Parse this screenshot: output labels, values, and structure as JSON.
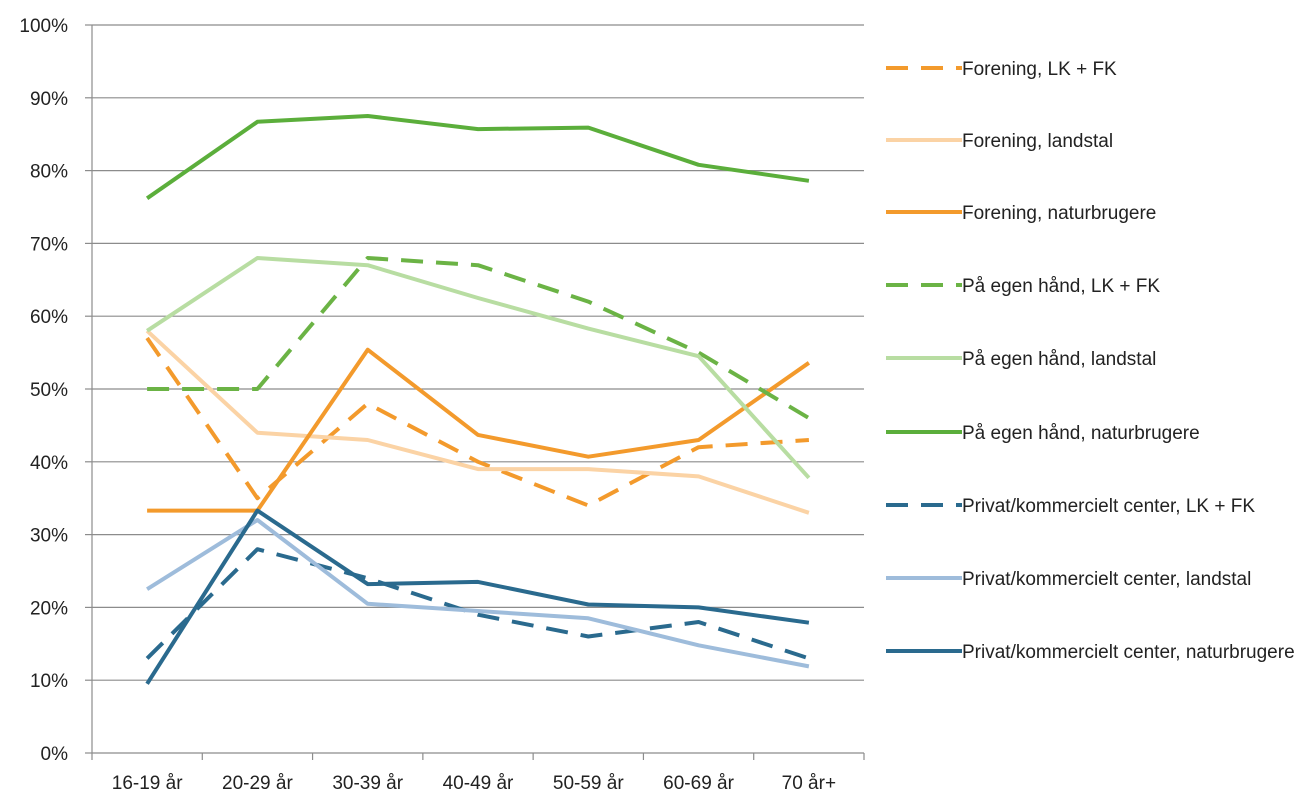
{
  "chart_data": {
    "type": "line",
    "title": "",
    "xlabel": "",
    "ylabel": "",
    "categories": [
      "16-19 år",
      "20-29 år",
      "30-39 år",
      "40-49 år",
      "50-59 år",
      "60-69 år",
      "70 år+"
    ],
    "ylim": [
      0,
      1
    ],
    "y_ticks": [
      "0%",
      "10%",
      "20%",
      "30%",
      "40%",
      "50%",
      "60%",
      "70%",
      "80%",
      "90%",
      "100%"
    ],
    "grid": true,
    "legend_position": "right",
    "series": [
      {
        "name": "Forening, LK + FK",
        "style": "dashed",
        "color": "#F39A2C",
        "values": [
          0.57,
          0.35,
          0.48,
          0.4,
          0.34,
          0.42,
          0.43
        ]
      },
      {
        "name": "Forening, landstal",
        "style": "solid",
        "color": "#FBD3A5",
        "values": [
          0.58,
          0.44,
          0.43,
          0.39,
          0.39,
          0.38,
          0.33
        ]
      },
      {
        "name": "Forening, naturbrugere",
        "style": "solid",
        "color": "#F39A2C",
        "values": [
          0.333,
          0.333,
          0.554,
          0.437,
          0.407,
          0.43,
          0.536
        ]
      },
      {
        "name": "På egen hånd, LK + FK",
        "style": "dashed",
        "color": "#6BB345",
        "values": [
          0.5,
          0.5,
          0.68,
          0.67,
          0.62,
          0.55,
          0.46
        ]
      },
      {
        "name": "På egen hånd, landstal",
        "style": "solid",
        "color": "#B8DDA2",
        "values": [
          0.58,
          0.68,
          0.67,
          0.625,
          0.583,
          0.545,
          0.378
        ]
      },
      {
        "name": "På egen hånd, naturbrugere",
        "style": "solid",
        "color": "#5BAE3B",
        "values": [
          0.762,
          0.867,
          0.875,
          0.857,
          0.859,
          0.808,
          0.786
        ]
      },
      {
        "name": "Privat/kommercielt center, LK + FK",
        "style": "dashed",
        "color": "#2A6A8E",
        "values": [
          0.13,
          0.28,
          0.24,
          0.19,
          0.16,
          0.18,
          0.13
        ]
      },
      {
        "name": "Privat/kommercielt center, landstal",
        "style": "solid",
        "color": "#9EBCDB",
        "values": [
          0.225,
          0.32,
          0.205,
          0.195,
          0.185,
          0.148,
          0.119
        ]
      },
      {
        "name": "Privat/kommercielt center, naturbrugere",
        "style": "solid",
        "color": "#2A6A8E",
        "values": [
          0.095,
          0.333,
          0.232,
          0.235,
          0.204,
          0.2,
          0.179
        ]
      }
    ]
  }
}
